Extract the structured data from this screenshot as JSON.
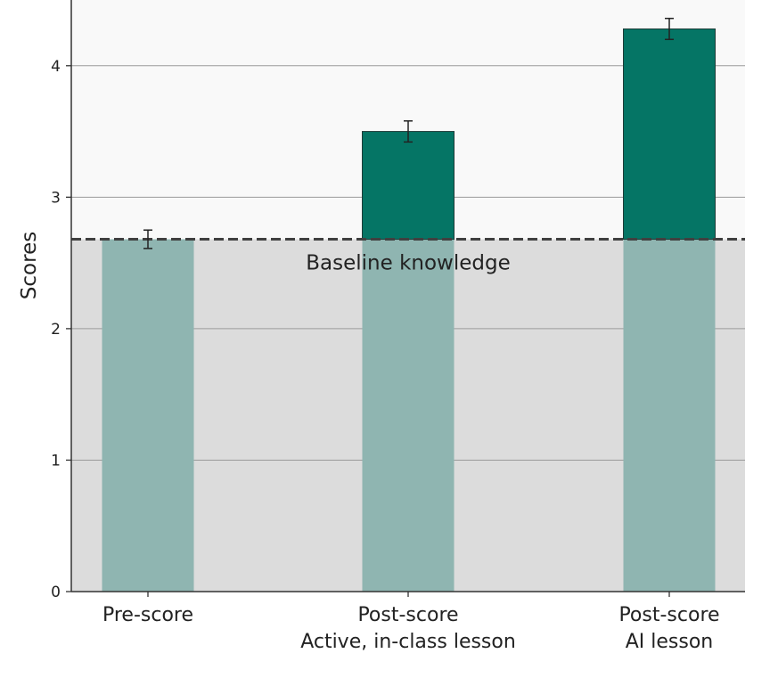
{
  "chart_data": {
    "type": "bar",
    "ylabel": "Scores",
    "ylim": [
      0,
      4.5
    ],
    "yticks": [
      0,
      1,
      2,
      3,
      4
    ],
    "grid": true,
    "categories": [
      {
        "line1": "Pre-score",
        "line2": ""
      },
      {
        "line1": "Post-score",
        "line2": "Active, in-class lesson"
      },
      {
        "line1": "Post-score",
        "line2": "AI lesson"
      }
    ],
    "values": [
      2.68,
      3.5,
      4.28
    ],
    "errors": [
      0.07,
      0.08,
      0.08
    ],
    "baseline": {
      "value": 2.68,
      "label": "Baseline knowledge"
    },
    "colors": {
      "gain": "#057565",
      "base": "#8fb5b1",
      "shade": "#dcdcdc",
      "background": "#f9f9f9",
      "grid": "#9a9a9a",
      "baseline_line": "#404040"
    }
  }
}
